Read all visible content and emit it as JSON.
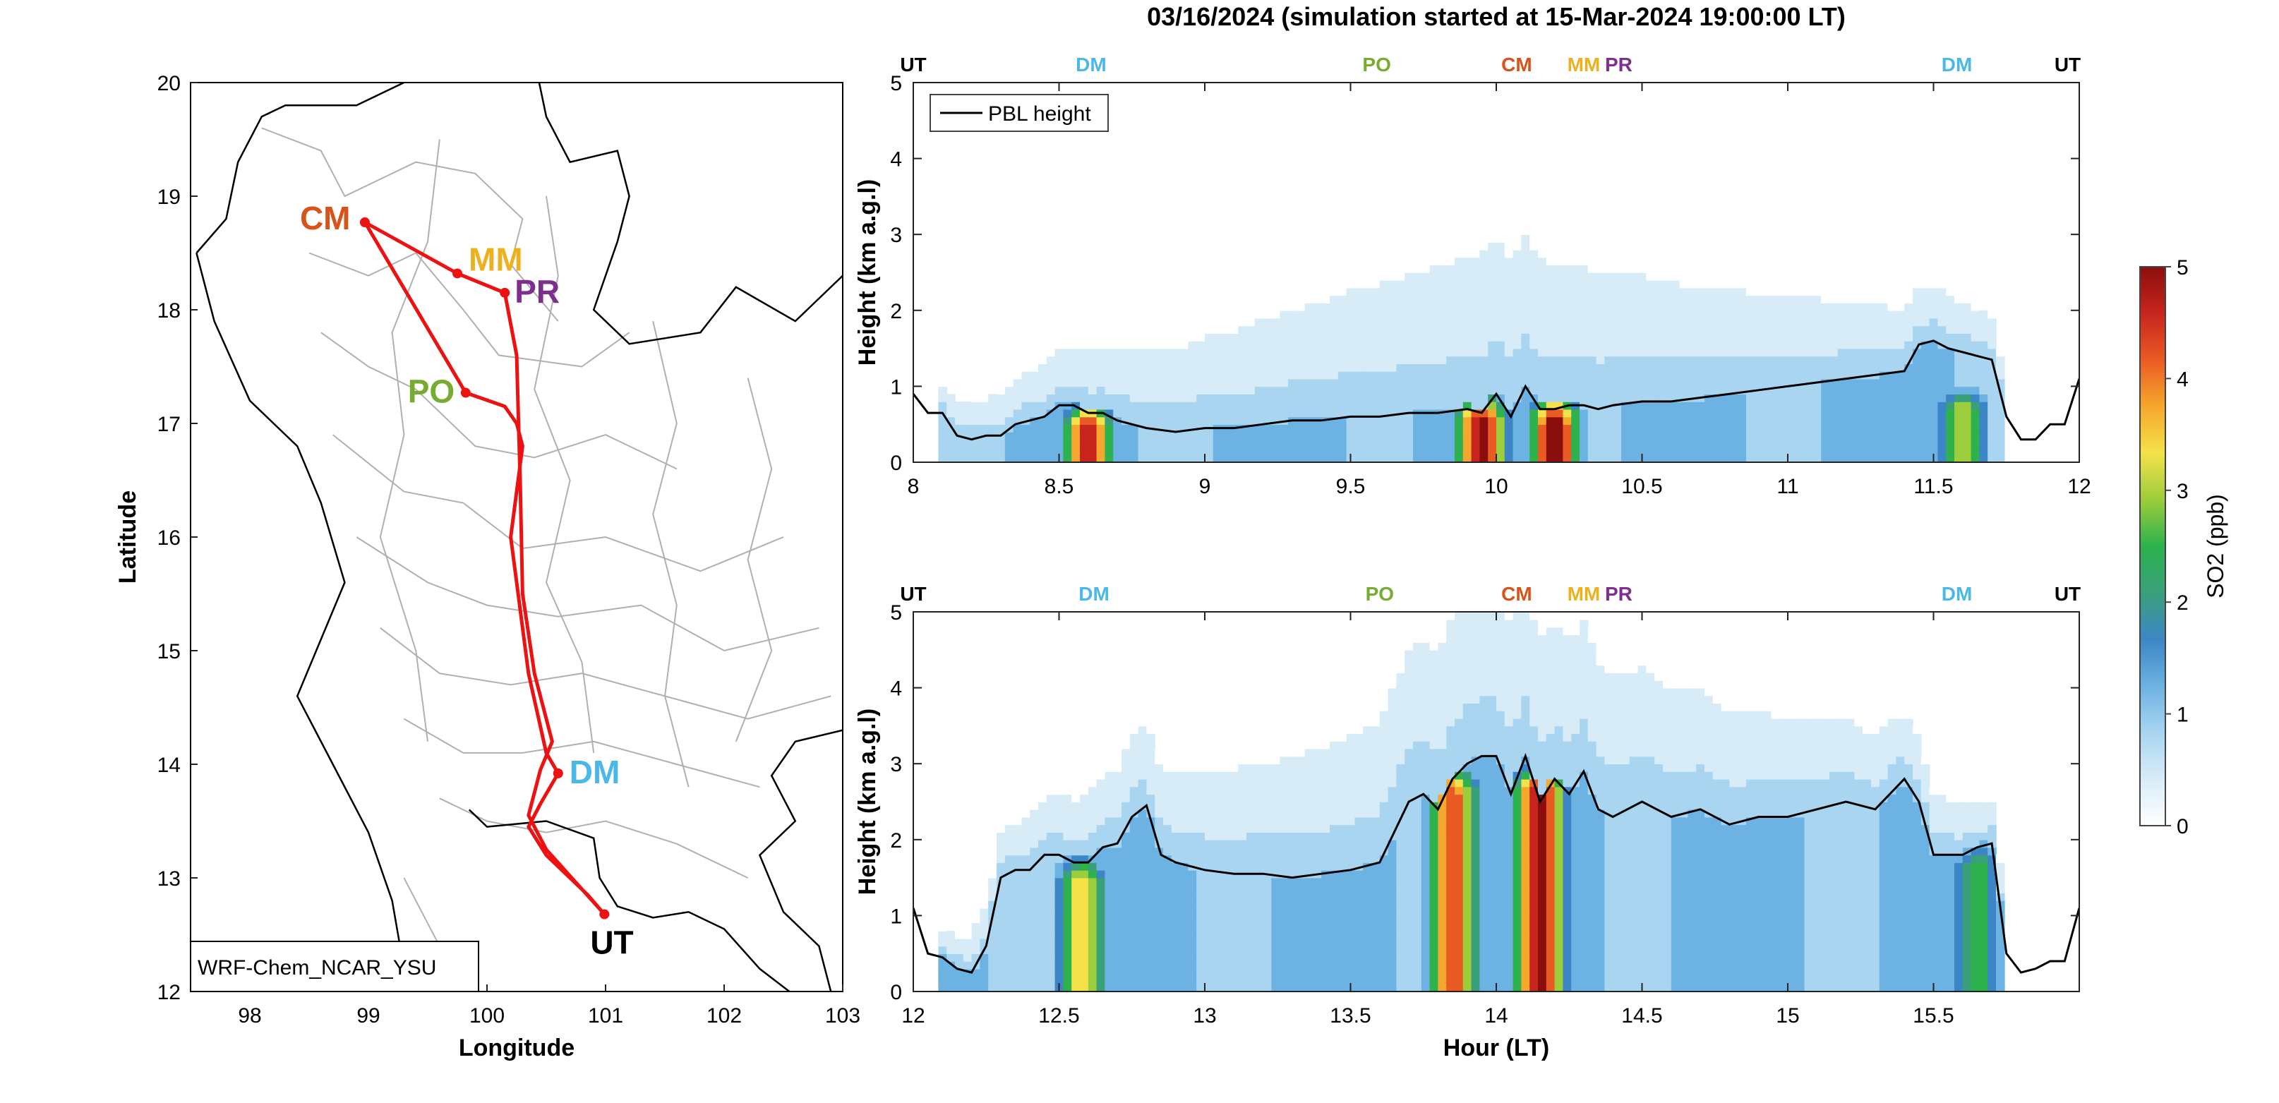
{
  "title": "03/16/2024 (simulation started at 15-Mar-2024 19:00:00 LT)",
  "colors": {
    "route": "#ee1111",
    "UT": "#000000",
    "DM": "#4ab8e8",
    "PO": "#77ac30",
    "CM": "#d95319",
    "MM": "#edb120",
    "PR": "#7e2f8e",
    "border": "#b0b0b0",
    "coast": "#000000"
  },
  "colormap": [
    "#ffffff",
    "#d8ecf8",
    "#a9d5f0",
    "#6cb2e2",
    "#3d86c6",
    "#3aa07a",
    "#2db24d",
    "#9ccd3c",
    "#f4e24a",
    "#f6a72d",
    "#ea5b24",
    "#c7251d",
    "#8b0e0e"
  ],
  "map": {
    "stamp": "WRF-Chem_NCAR_YSU",
    "xlabel": "Longitude",
    "ylabel": "Latitude",
    "xlim": [
      97.5,
      103
    ],
    "ylim": [
      12,
      20
    ],
    "xticks": [
      "98",
      "99",
      "100",
      "101",
      "102",
      "103"
    ],
    "yticks": [
      "12",
      "13",
      "14",
      "15",
      "16",
      "17",
      "18",
      "19",
      "20"
    ],
    "stations": [
      {
        "label": "CM",
        "lon": 98.97,
        "lat": 18.77
      },
      {
        "label": "MM",
        "lon": 99.75,
        "lat": 18.32
      },
      {
        "label": "PR",
        "lon": 100.15,
        "lat": 18.15
      },
      {
        "label": "PO",
        "lon": 99.82,
        "lat": 17.27
      },
      {
        "label": "DM",
        "lon": 100.6,
        "lat": 13.92
      },
      {
        "label": "UT",
        "lon": 100.99,
        "lat": 12.68
      }
    ],
    "route_lon": [
      100.99,
      100.85,
      100.5,
      100.35,
      100.45,
      100.6,
      100.5,
      100.35,
      100.2,
      100.3,
      100.25,
      100.15,
      99.82,
      98.97,
      99.75,
      100.15,
      100.25,
      100.28,
      100.3,
      100.4,
      100.55,
      100.45,
      100.35,
      100.5,
      100.99
    ],
    "route_lat": [
      12.68,
      12.85,
      13.2,
      13.45,
      13.65,
      13.92,
      14.1,
      14.8,
      16.0,
      16.8,
      17.0,
      17.15,
      17.27,
      18.77,
      18.32,
      18.15,
      17.6,
      16.5,
      15.5,
      14.8,
      14.2,
      13.95,
      13.55,
      13.25,
      12.68
    ]
  },
  "top_labels": {
    "panel1": [
      {
        "text": "UT",
        "t": 8.0,
        "color": "UT"
      },
      {
        "text": "DM",
        "t": 8.61,
        "color": "DM"
      },
      {
        "text": "PO",
        "t": 9.59,
        "color": "PO"
      },
      {
        "text": "CM",
        "t": 10.07,
        "color": "CM"
      },
      {
        "text": "MM",
        "t": 10.3,
        "color": "MM"
      },
      {
        "text": "PR",
        "t": 10.42,
        "color": "PR"
      },
      {
        "text": "DM",
        "t": 11.58,
        "color": "DM"
      },
      {
        "text": "UT",
        "t": 11.96,
        "color": "UT"
      }
    ],
    "panel2": [
      {
        "text": "UT",
        "t": 12.0,
        "color": "UT"
      },
      {
        "text": "DM",
        "t": 12.62,
        "color": "DM"
      },
      {
        "text": "PO",
        "t": 13.6,
        "color": "PO"
      },
      {
        "text": "CM",
        "t": 14.07,
        "color": "CM"
      },
      {
        "text": "MM",
        "t": 14.3,
        "color": "MM"
      },
      {
        "text": "PR",
        "t": 14.42,
        "color": "PR"
      },
      {
        "text": "DM",
        "t": 15.58,
        "color": "DM"
      },
      {
        "text": "UT",
        "t": 15.96,
        "color": "UT"
      }
    ]
  },
  "legend_label": "PBL height",
  "ylabel": "Height (km a.g.l)",
  "xlabel": "Hour (LT)",
  "colorbar": {
    "label": "SO2 (ppb)",
    "ticks": [
      "0",
      "1",
      "2",
      "3",
      "4",
      "5"
    ],
    "range": [
      0,
      5
    ]
  },
  "panels": [
    {
      "xticks": [
        "8",
        "8.5",
        "9",
        "9.5",
        "10",
        "10.5",
        "11",
        "11.5",
        "12"
      ],
      "yticks": [
        "0",
        "1",
        "2",
        "3",
        "4",
        "5"
      ]
    },
    {
      "xticks": [
        "12",
        "12.5",
        "13",
        "13.5",
        "14",
        "14.5",
        "15",
        "15.5"
      ],
      "yticks": [
        "0",
        "1",
        "2",
        "3",
        "4",
        "5"
      ]
    }
  ],
  "chart_data": [
    {
      "type": "line",
      "title": "03/16/2024 (simulation started at 15-Mar-2024 19:00:00 LT)",
      "xlabel": "",
      "ylabel": "Height (km a.g.l)",
      "xlim": [
        8,
        12
      ],
      "ylim": [
        0,
        5
      ],
      "series": [
        {
          "name": "PBL height",
          "x": [
            8.0,
            8.05,
            8.1,
            8.15,
            8.2,
            8.25,
            8.3,
            8.35,
            8.4,
            8.45,
            8.5,
            8.55,
            8.6,
            8.65,
            8.7,
            8.8,
            8.9,
            9.0,
            9.1,
            9.2,
            9.3,
            9.4,
            9.5,
            9.6,
            9.7,
            9.8,
            9.9,
            9.95,
            10.0,
            10.05,
            10.1,
            10.15,
            10.2,
            10.25,
            10.3,
            10.35,
            10.4,
            10.5,
            10.6,
            10.7,
            10.8,
            10.9,
            11.0,
            11.1,
            11.2,
            11.3,
            11.4,
            11.45,
            11.5,
            11.55,
            11.6,
            11.65,
            11.7,
            11.75,
            11.8,
            11.85,
            11.9,
            11.95,
            12.0
          ],
          "y": [
            0.9,
            0.65,
            0.65,
            0.35,
            0.3,
            0.35,
            0.35,
            0.5,
            0.55,
            0.6,
            0.75,
            0.75,
            0.65,
            0.65,
            0.55,
            0.45,
            0.4,
            0.45,
            0.45,
            0.5,
            0.55,
            0.55,
            0.6,
            0.6,
            0.65,
            0.65,
            0.7,
            0.65,
            0.9,
            0.6,
            1.0,
            0.7,
            0.7,
            0.75,
            0.75,
            0.7,
            0.75,
            0.8,
            0.8,
            0.85,
            0.9,
            0.95,
            1.0,
            1.05,
            1.1,
            1.15,
            1.2,
            1.55,
            1.6,
            1.5,
            1.45,
            1.4,
            1.35,
            0.6,
            0.3,
            0.3,
            0.5,
            0.5,
            1.1
          ]
        }
      ],
      "heatmap": {
        "z_label": "SO2 (ppb)",
        "shading_km": [
          2.8,
          1.0
        ],
        "sources": [
          {
            "t": 8.6,
            "h": 0.4,
            "value": 4.8
          },
          {
            "t": 9.95,
            "h": 0.5,
            "value": 5.0
          },
          {
            "t": 10.2,
            "h": 0.5,
            "value": 5.0
          },
          {
            "t": 11.6,
            "h": 0.6,
            "value": 3.2
          }
        ]
      }
    },
    {
      "type": "line",
      "title": "",
      "xlabel": "Hour (LT)",
      "ylabel": "Height (km a.g.l)",
      "xlim": [
        12,
        16
      ],
      "ylim": [
        0,
        5
      ],
      "series": [
        {
          "name": "PBL height",
          "x": [
            12.0,
            12.05,
            12.1,
            12.15,
            12.2,
            12.25,
            12.3,
            12.35,
            12.4,
            12.45,
            12.5,
            12.55,
            12.6,
            12.65,
            12.7,
            12.75,
            12.8,
            12.85,
            12.9,
            13.0,
            13.1,
            13.2,
            13.3,
            13.4,
            13.5,
            13.6,
            13.7,
            13.75,
            13.8,
            13.85,
            13.9,
            13.95,
            14.0,
            14.05,
            14.1,
            14.15,
            14.2,
            14.25,
            14.3,
            14.35,
            14.4,
            14.5,
            14.6,
            14.7,
            14.8,
            14.9,
            15.0,
            15.1,
            15.2,
            15.3,
            15.4,
            15.45,
            15.5,
            15.55,
            15.6,
            15.65,
            15.7,
            15.75,
            15.8,
            15.85,
            15.9,
            15.95,
            16.0
          ],
          "y": [
            1.1,
            0.5,
            0.45,
            0.3,
            0.25,
            0.6,
            1.5,
            1.6,
            1.6,
            1.8,
            1.8,
            1.7,
            1.7,
            1.9,
            1.95,
            2.3,
            2.45,
            1.8,
            1.7,
            1.6,
            1.55,
            1.55,
            1.5,
            1.55,
            1.6,
            1.7,
            2.5,
            2.6,
            2.4,
            2.8,
            3.0,
            3.1,
            3.1,
            2.6,
            3.1,
            2.5,
            2.8,
            2.6,
            2.9,
            2.4,
            2.3,
            2.5,
            2.3,
            2.4,
            2.2,
            2.3,
            2.3,
            2.4,
            2.5,
            2.4,
            2.8,
            2.5,
            1.8,
            1.8,
            1.8,
            1.9,
            1.95,
            0.5,
            0.25,
            0.3,
            0.4,
            0.4,
            1.1
          ]
        }
      ],
      "heatmap": {
        "z_label": "SO2 (ppb)",
        "shading_km": [
          3.0,
          2.2
        ],
        "sources": [
          {
            "t": 12.58,
            "h": 1.4,
            "value": 3.5
          },
          {
            "t": 13.85,
            "h": 2.6,
            "value": 4.2
          },
          {
            "t": 14.15,
            "h": 2.6,
            "value": 5.0
          },
          {
            "t": 15.65,
            "h": 1.6,
            "value": 2.5
          }
        ]
      }
    }
  ]
}
